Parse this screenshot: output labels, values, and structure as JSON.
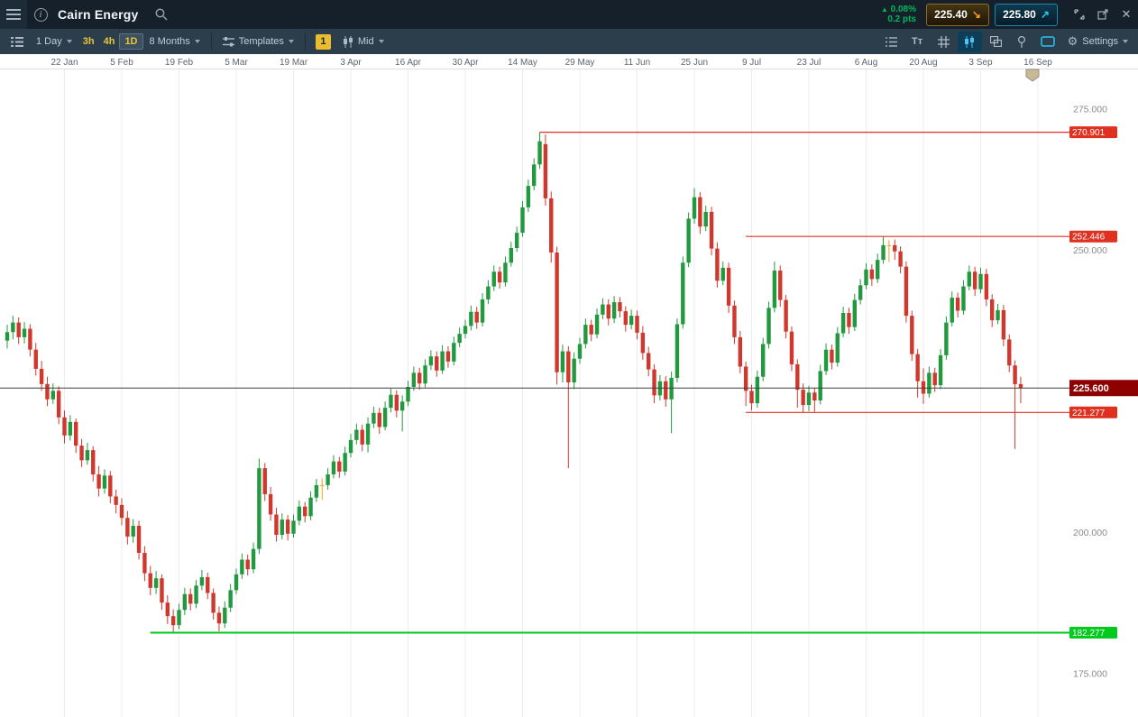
{
  "topbar": {
    "title": "Cairn Energy",
    "change": {
      "arrow": "▲",
      "pct": "0.08%",
      "pts": "0.2 pts",
      "color": "#00b75c"
    },
    "sell": {
      "price": "225.40",
      "arrow": "↘"
    },
    "buy": {
      "price": "225.80",
      "arrow": "↗"
    }
  },
  "toolbar": {
    "period": "1 Day",
    "quick": [
      "3h",
      "4h",
      "1D"
    ],
    "range": "8 Months",
    "templates": "Templates",
    "interval": "1",
    "price_type": "Mid",
    "settings": "Settings"
  },
  "icons": {
    "info": "i",
    "close": "✕",
    "gear": "⚙",
    "text_tool": "Tт"
  },
  "chart_data": {
    "type": "candlestick",
    "title": "Cairn Energy",
    "timeframe": "1 Day",
    "range": "8 Months",
    "price_basis": "Mid",
    "x_tick_labels": [
      "22 Jan",
      "5 Feb",
      "19 Feb",
      "5 Mar",
      "19 Mar",
      "3 Apr",
      "16 Apr",
      "30 Apr",
      "14 May",
      "29 May",
      "11 Jun",
      "25 Jun",
      "9 Jul",
      "23 Jul",
      "6 Aug",
      "20 Aug",
      "3 Sep",
      "16 Sep"
    ],
    "y_axis_labels": [
      {
        "value": 275,
        "label": "275.000"
      },
      {
        "value": 250,
        "label": "250.000"
      },
      {
        "value": 200,
        "label": "200.000"
      },
      {
        "value": 175,
        "label": "175.000"
      }
    ],
    "y_domain": [
      168,
      282
    ],
    "grid": "vertical-only",
    "levels": [
      {
        "value": 270.901,
        "label": "270.901",
        "color": "#e03020",
        "start_index": 93,
        "width": 1.2
      },
      {
        "value": 252.446,
        "label": "252.446",
        "color": "#e03020",
        "start_index": 129,
        "width": 1.2
      },
      {
        "value": 221.277,
        "label": "221.277",
        "color": "#e03020",
        "start_index": 129,
        "width": 1.2
      },
      {
        "value": 182.277,
        "label": "182.277",
        "color": "#00ca1e",
        "start_index": 25,
        "width": 2
      }
    ],
    "current_price": {
      "value": 225.6,
      "label": "225.600",
      "line_color": "#3f3f3f",
      "badge_color": "#8e0000"
    },
    "colors": {
      "up": "#22993f",
      "down": "#d0382e",
      "doji": "#f0a020",
      "grid": "#ececec",
      "axis_text": "#8a8a8a",
      "date_text": "#5c6670"
    },
    "candles": [
      [
        234.0,
        236.8,
        232.6,
        235.5
      ],
      [
        235.5,
        238.4,
        234.2,
        237.2
      ],
      [
        237.2,
        238.1,
        233.4,
        234.6
      ],
      [
        234.6,
        237.3,
        233.5,
        236.1
      ],
      [
        236.1,
        236.9,
        231.2,
        232.4
      ],
      [
        232.4,
        233.6,
        227.8,
        229.0
      ],
      [
        229.0,
        230.4,
        225.1,
        226.3
      ],
      [
        226.3,
        227.6,
        222.4,
        223.6
      ],
      [
        223.6,
        226.4,
        222.8,
        225.1
      ],
      [
        225.1,
        225.9,
        219.2,
        220.4
      ],
      [
        220.4,
        221.6,
        215.8,
        217.2
      ],
      [
        217.2,
        220.8,
        216.3,
        219.6
      ],
      [
        219.6,
        220.2,
        214.1,
        215.4
      ],
      [
        215.4,
        216.6,
        211.6,
        212.8
      ],
      [
        212.8,
        215.9,
        212.0,
        214.6
      ],
      [
        214.6,
        215.3,
        209.1,
        210.3
      ],
      [
        210.3,
        211.8,
        206.4,
        207.8
      ],
      [
        207.8,
        211.2,
        206.9,
        210.1
      ],
      [
        210.1,
        210.9,
        205.2,
        206.4
      ],
      [
        206.4,
        207.6,
        203.4,
        204.9
      ],
      [
        204.9,
        206.1,
        201.3,
        202.6
      ],
      [
        202.6,
        203.8,
        197.9,
        199.3
      ],
      [
        199.3,
        202.4,
        198.2,
        201.2
      ],
      [
        201.2,
        202.1,
        195.2,
        196.4
      ],
      [
        196.4,
        197.6,
        191.4,
        192.8
      ],
      [
        192.8,
        194.1,
        188.9,
        190.2
      ],
      [
        190.2,
        193.2,
        189.1,
        191.9
      ],
      [
        191.9,
        192.6,
        186.3,
        187.6
      ],
      [
        187.6,
        188.9,
        183.8,
        185.2
      ],
      [
        185.2,
        186.4,
        182.3,
        183.6
      ],
      [
        183.6,
        187.4,
        182.9,
        186.3
      ],
      [
        186.3,
        190.2,
        185.4,
        189.1
      ],
      [
        189.1,
        190.1,
        186.2,
        187.4
      ],
      [
        187.4,
        191.6,
        186.6,
        190.6
      ],
      [
        190.6,
        193.4,
        189.8,
        192.1
      ],
      [
        192.1,
        192.9,
        188.2,
        189.3
      ],
      [
        189.3,
        190.1,
        184.6,
        185.8
      ],
      [
        185.8,
        186.9,
        182.5,
        183.9
      ],
      [
        183.9,
        187.8,
        183.1,
        186.7
      ],
      [
        186.7,
        190.9,
        185.9,
        189.8
      ],
      [
        189.8,
        193.6,
        189.1,
        192.6
      ],
      [
        192.6,
        196.3,
        191.8,
        195.2
      ],
      [
        195.2,
        196.1,
        192.4,
        193.5
      ],
      [
        193.5,
        198.2,
        192.8,
        197.1
      ],
      [
        197.1,
        213.1,
        196.2,
        211.4
      ],
      [
        211.4,
        212.3,
        205.6,
        206.8
      ],
      [
        206.8,
        208.1,
        202.1,
        203.2
      ],
      [
        203.2,
        204.4,
        198.4,
        199.6
      ],
      [
        199.6,
        203.4,
        198.8,
        202.3
      ],
      [
        202.3,
        203.1,
        198.6,
        199.8
      ],
      [
        199.8,
        203.2,
        199.1,
        202.1
      ],
      [
        202.1,
        205.7,
        201.3,
        204.6
      ],
      [
        204.6,
        205.4,
        201.8,
        202.9
      ],
      [
        202.9,
        207.3,
        202.2,
        206.2
      ],
      [
        206.2,
        209.5,
        205.4,
        208.4
      ],
      [
        208.4,
        209.6,
        205.8,
        208.4
      ],
      [
        208.4,
        211.4,
        207.6,
        210.3
      ],
      [
        210.3,
        213.7,
        209.6,
        212.6
      ],
      [
        212.6,
        213.4,
        209.7,
        210.8
      ],
      [
        210.8,
        215.2,
        210.1,
        214.1
      ],
      [
        214.1,
        217.5,
        213.3,
        216.4
      ],
      [
        216.4,
        219.3,
        215.6,
        218.2
      ],
      [
        218.2,
        219.1,
        214.4,
        215.6
      ],
      [
        215.6,
        220.4,
        214.2,
        219.3
      ],
      [
        219.3,
        222.3,
        218.5,
        221.2
      ],
      [
        221.2,
        222.1,
        217.5,
        218.7
      ],
      [
        218.7,
        223.2,
        218.1,
        222.1
      ],
      [
        222.1,
        225.5,
        221.3,
        224.4
      ],
      [
        224.4,
        225.2,
        220.4,
        221.6
      ],
      [
        221.6,
        224.3,
        217.9,
        223.2
      ],
      [
        223.2,
        226.9,
        222.4,
        225.8
      ],
      [
        225.8,
        229.4,
        225.1,
        228.3
      ],
      [
        228.3,
        229.2,
        225.3,
        226.4
      ],
      [
        226.4,
        230.7,
        225.7,
        229.6
      ],
      [
        229.6,
        232.3,
        228.8,
        231.2
      ],
      [
        231.2,
        232.1,
        227.6,
        228.7
      ],
      [
        228.7,
        233.2,
        228.1,
        232.1
      ],
      [
        232.1,
        233.0,
        229.2,
        230.3
      ],
      [
        230.3,
        234.7,
        229.6,
        233.6
      ],
      [
        233.6,
        236.3,
        232.8,
        235.2
      ],
      [
        235.2,
        237.7,
        234.4,
        236.6
      ],
      [
        236.6,
        240.2,
        235.8,
        239.1
      ],
      [
        239.1,
        240.0,
        236.1,
        237.2
      ],
      [
        237.2,
        242.4,
        236.5,
        241.3
      ],
      [
        241.3,
        244.7,
        240.5,
        243.6
      ],
      [
        243.6,
        247.3,
        242.8,
        246.2
      ],
      [
        246.2,
        247.1,
        243.2,
        244.3
      ],
      [
        244.3,
        248.9,
        243.6,
        247.8
      ],
      [
        247.8,
        251.5,
        247.1,
        250.4
      ],
      [
        250.4,
        254.2,
        249.7,
        253.1
      ],
      [
        253.1,
        258.7,
        252.4,
        257.6
      ],
      [
        257.6,
        262.5,
        256.8,
        261.4
      ],
      [
        261.4,
        266.3,
        260.6,
        265.2
      ],
      [
        265.2,
        270.9,
        264.4,
        269.3
      ],
      [
        268.8,
        270.5,
        257.9,
        259.2
      ],
      [
        259.2,
        260.4,
        247.8,
        249.6
      ],
      [
        249.6,
        250.6,
        226.2,
        228.4
      ],
      [
        228.4,
        233.3,
        226.6,
        232.1
      ],
      [
        232.1,
        233.0,
        211.4,
        226.6
      ],
      [
        226.6,
        231.9,
        225.4,
        230.8
      ],
      [
        230.8,
        234.5,
        229.9,
        233.4
      ],
      [
        233.4,
        237.9,
        232.6,
        236.8
      ],
      [
        236.8,
        237.7,
        233.9,
        235.1
      ],
      [
        235.1,
        239.7,
        234.4,
        238.6
      ],
      [
        238.6,
        241.5,
        237.8,
        240.4
      ],
      [
        240.4,
        241.3,
        236.7,
        237.9
      ],
      [
        237.9,
        241.9,
        237.1,
        240.8
      ],
      [
        240.8,
        241.7,
        238.1,
        239.2
      ],
      [
        239.2,
        240.1,
        235.6,
        236.8
      ],
      [
        236.8,
        239.5,
        236.0,
        238.4
      ],
      [
        238.4,
        239.3,
        234.2,
        235.4
      ],
      [
        235.4,
        236.6,
        230.6,
        231.8
      ],
      [
        231.8,
        232.9,
        227.7,
        228.9
      ],
      [
        228.9,
        229.8,
        222.9,
        224.3
      ],
      [
        224.3,
        227.9,
        223.4,
        226.8
      ],
      [
        226.8,
        227.7,
        222.3,
        223.6
      ],
      [
        223.6,
        228.5,
        217.6,
        227.4
      ],
      [
        227.4,
        237.9,
        226.6,
        236.9
      ],
      [
        236.9,
        248.9,
        236.1,
        247.8
      ],
      [
        247.8,
        256.7,
        247.0,
        255.6
      ],
      [
        255.6,
        261.0,
        254.7,
        259.4
      ],
      [
        259.4,
        260.3,
        252.9,
        254.2
      ],
      [
        254.2,
        257.9,
        253.4,
        256.8
      ],
      [
        256.8,
        257.7,
        249.1,
        250.3
      ],
      [
        250.3,
        251.4,
        243.4,
        244.6
      ],
      [
        244.6,
        248.0,
        243.8,
        246.9
      ],
      [
        246.9,
        247.8,
        238.9,
        240.2
      ],
      [
        240.2,
        241.1,
        233.4,
        234.6
      ],
      [
        234.6,
        235.7,
        228.2,
        229.4
      ],
      [
        229.4,
        230.3,
        222.4,
        225.1
      ],
      [
        225.1,
        226.2,
        221.6,
        222.9
      ],
      [
        222.9,
        228.7,
        222.1,
        227.6
      ],
      [
        227.6,
        234.5,
        226.8,
        233.4
      ],
      [
        233.4,
        240.9,
        232.6,
        239.8
      ],
      [
        239.8,
        248.0,
        239.0,
        246.4
      ],
      [
        246.4,
        247.3,
        240.0,
        241.2
      ],
      [
        241.2,
        242.1,
        234.4,
        235.6
      ],
      [
        235.6,
        236.5,
        228.6,
        229.8
      ],
      [
        229.8,
        230.7,
        222.1,
        225.3
      ],
      [
        225.3,
        226.4,
        221.3,
        222.6
      ],
      [
        222.6,
        226.0,
        221.5,
        224.8
      ],
      [
        224.8,
        225.7,
        221.4,
        223.4
      ],
      [
        223.4,
        229.7,
        222.7,
        228.6
      ],
      [
        228.6,
        233.5,
        227.9,
        232.4
      ],
      [
        232.4,
        233.3,
        228.9,
        230.1
      ],
      [
        230.1,
        236.4,
        229.4,
        235.3
      ],
      [
        235.3,
        240.0,
        234.6,
        238.9
      ],
      [
        238.9,
        239.8,
        235.2,
        236.4
      ],
      [
        236.4,
        242.3,
        235.7,
        241.2
      ],
      [
        241.2,
        244.9,
        240.4,
        243.8
      ],
      [
        243.8,
        247.7,
        243.1,
        246.6
      ],
      [
        246.6,
        247.5,
        243.7,
        244.9
      ],
      [
        244.9,
        249.4,
        244.2,
        248.3
      ],
      [
        248.3,
        252.4,
        247.6,
        250.9
      ],
      [
        250.9,
        251.8,
        247.9,
        250.9
      ],
      [
        250.9,
        251.9,
        248.3,
        249.8
      ],
      [
        249.8,
        250.7,
        245.9,
        247.1
      ],
      [
        247.1,
        248.0,
        237.2,
        238.4
      ],
      [
        238.4,
        239.3,
        230.4,
        231.6
      ],
      [
        231.6,
        232.5,
        223.9,
        226.8
      ],
      [
        226.8,
        229.1,
        222.8,
        224.6
      ],
      [
        224.6,
        229.4,
        223.9,
        228.3
      ],
      [
        228.3,
        229.2,
        224.9,
        226.1
      ],
      [
        226.1,
        232.5,
        225.4,
        231.4
      ],
      [
        231.4,
        238.3,
        230.6,
        237.2
      ],
      [
        237.2,
        242.7,
        236.5,
        241.6
      ],
      [
        241.6,
        242.5,
        238.1,
        239.3
      ],
      [
        239.3,
        244.7,
        238.6,
        243.6
      ],
      [
        243.6,
        247.3,
        242.9,
        246.2
      ],
      [
        246.2,
        247.1,
        241.9,
        243.1
      ],
      [
        243.1,
        246.9,
        242.4,
        245.8
      ],
      [
        245.8,
        246.7,
        240.1,
        241.3
      ],
      [
        241.3,
        242.2,
        236.4,
        237.6
      ],
      [
        237.6,
        240.5,
        236.9,
        239.4
      ],
      [
        239.4,
        240.3,
        233.0,
        234.2
      ],
      [
        234.2,
        235.1,
        228.4,
        229.6
      ],
      [
        229.6,
        230.5,
        214.8,
        226.3
      ],
      [
        226.3,
        227.6,
        222.9,
        225.6
      ]
    ]
  }
}
